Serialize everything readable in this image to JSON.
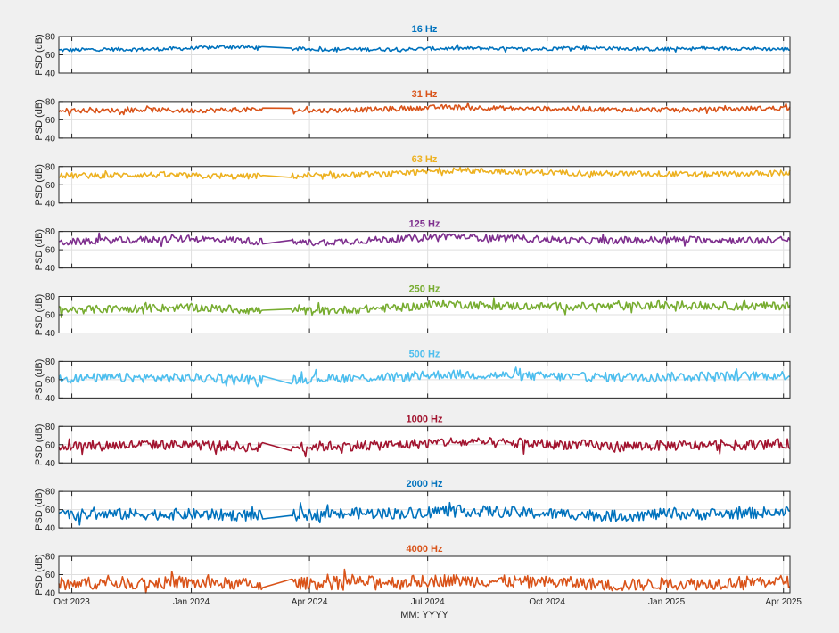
{
  "chart_data": {
    "type": "line",
    "xlabel": "MM: YYYY",
    "ylabel": "PSD (dB)",
    "x_range": [
      "2023-09-21",
      "2025-04-06"
    ],
    "x_ticks": [
      {
        "label": "Oct 2023",
        "date": "2023-10-01"
      },
      {
        "label": "Jan 2024",
        "date": "2024-01-01"
      },
      {
        "label": "Apr 2024",
        "date": "2024-04-01"
      },
      {
        "label": "Jul 2024",
        "date": "2024-07-01"
      },
      {
        "label": "Oct 2024",
        "date": "2024-10-01"
      },
      {
        "label": "Jan 2025",
        "date": "2025-01-01"
      },
      {
        "label": "Apr 2025",
        "date": "2025-04-01"
      }
    ],
    "y_ticks": [
      40,
      60,
      80
    ],
    "ylim": [
      40,
      80
    ],
    "grid": true,
    "data_gap": [
      "2024-02-25",
      "2024-03-18"
    ],
    "series": [
      {
        "name": "16 Hz",
        "color": "#0072BD",
        "approx_level_dB": [
          65,
          66,
          66,
          67,
          69,
          67,
          66,
          66,
          66,
          67,
          67,
          66,
          68,
          67,
          66,
          67,
          67,
          66
        ]
      },
      {
        "name": "31 Hz",
        "color": "#D95319",
        "approx_level_dB": [
          70,
          70,
          71,
          70,
          71,
          71,
          70,
          71,
          72,
          74,
          73,
          72,
          72,
          71,
          71,
          71,
          72,
          73
        ]
      },
      {
        "name": "63 Hz",
        "color": "#EDB120",
        "approx_level_dB": [
          70,
          70,
          71,
          70,
          69,
          70,
          69,
          71,
          72,
          76,
          75,
          74,
          73,
          72,
          72,
          71,
          72,
          73
        ]
      },
      {
        "name": "125 Hz",
        "color": "#7E2F8E",
        "approx_level_dB": [
          68,
          70,
          71,
          72,
          71,
          68,
          68,
          70,
          72,
          75,
          73,
          72,
          70,
          70,
          71,
          71,
          70,
          71
        ]
      },
      {
        "name": "250 Hz",
        "color": "#77AC30",
        "approx_level_dB": [
          65,
          66,
          67,
          68,
          66,
          64,
          64,
          66,
          68,
          72,
          70,
          69,
          69,
          69,
          70,
          70,
          69,
          70
        ]
      },
      {
        "name": "500 Hz",
        "color": "#4DBEEE",
        "approx_level_dB": [
          61,
          62,
          62,
          62,
          61,
          59,
          61,
          62,
          63,
          66,
          65,
          64,
          63,
          63,
          63,
          64,
          64,
          65
        ]
      },
      {
        "name": "1000 Hz",
        "color": "#A2142F",
        "approx_level_dB": [
          58,
          59,
          60,
          60,
          58,
          57,
          58,
          59,
          60,
          63,
          62,
          61,
          60,
          58,
          59,
          59,
          60,
          61
        ]
      },
      {
        "name": "2000 Hz",
        "color": "#0072BD",
        "approx_level_dB": [
          54,
          55,
          55,
          55,
          54,
          53,
          55,
          56,
          56,
          59,
          58,
          56,
          55,
          53,
          55,
          55,
          56,
          58
        ]
      },
      {
        "name": "4000 Hz",
        "color": "#D95319",
        "approx_level_dB": [
          50,
          51,
          51,
          51,
          50,
          49,
          51,
          52,
          52,
          54,
          53,
          52,
          51,
          48,
          50,
          50,
          52,
          53
        ]
      }
    ]
  }
}
